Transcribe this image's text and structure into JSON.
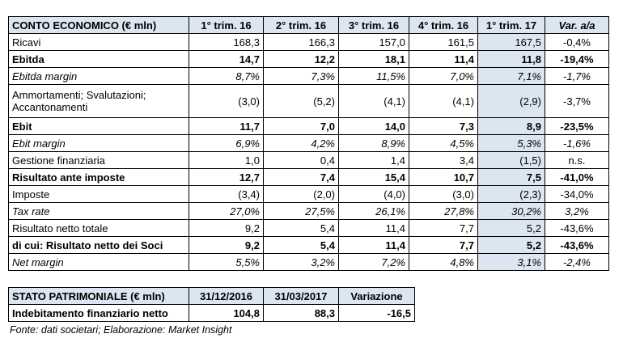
{
  "income_table": {
    "header": [
      "CONTO ECONOMICO (€ mln)",
      "1° trim. 16",
      "2° trim. 16",
      "3° trim. 16",
      "4° trim. 16",
      "1° trim. 17",
      "Var. a/a"
    ],
    "rows": [
      [
        "Ricavi",
        "168,3",
        "166,3",
        "157,0",
        "161,5",
        "167,5",
        "-0,4%"
      ],
      [
        "Ebitda",
        "14,7",
        "12,2",
        "18,1",
        "11,4",
        "11,8",
        "-19,4%"
      ],
      [
        "Ebitda margin",
        "8,7%",
        "7,3%",
        "11,5%",
        "7,0%",
        "7,1%",
        "-1,7%"
      ],
      [
        "Ammortamenti; Svalutazioni; Accantonamenti",
        "(3,0)",
        "(5,2)",
        "(4,1)",
        "(4,1)",
        "(2,9)",
        "-3,7%"
      ],
      [
        "Ebit",
        "11,7",
        "7,0",
        "14,0",
        "7,3",
        "8,9",
        "-23,5%"
      ],
      [
        "Ebit margin",
        "6,9%",
        "4,2%",
        "8,9%",
        "4,5%",
        "5,3%",
        "-1,6%"
      ],
      [
        "Gestione finanziaria",
        "1,0",
        "0,4",
        "1,4",
        "3,4",
        "(1,5)",
        "n.s."
      ],
      [
        "Risultato ante imposte",
        "12,7",
        "7,4",
        "15,4",
        "10,7",
        "7,5",
        "-41,0%"
      ],
      [
        "Imposte",
        "(3,4)",
        "(2,0)",
        "(4,0)",
        "(3,0)",
        "(2,3)",
        "-34,0%"
      ],
      [
        "Tax rate",
        "27,0%",
        "27,5%",
        "26,1%",
        "27,8%",
        "30,2%",
        "3,2%"
      ],
      [
        "Risultato netto totale",
        "9,2",
        "5,4",
        "11,4",
        "7,7",
        "5,2",
        "-43,6%"
      ],
      [
        "di cui: Risultato netto dei Soci",
        "9,2",
        "5,4",
        "11,4",
        "7,7",
        "5,2",
        "-43,6%"
      ],
      [
        "Net margin",
        "5,5%",
        "3,2%",
        "7,2%",
        "4,8%",
        "3,1%",
        "-2,4%"
      ]
    ]
  },
  "balance_table": {
    "header": [
      "STATO PATRIMONIALE (€ mln)",
      "31/12/2016",
      "31/03/2017",
      "Variazione"
    ],
    "rows": [
      [
        "Indebitamento finanziario netto",
        "104,8",
        "88,3",
        "-16,5"
      ]
    ]
  },
  "footnote": "Fonte: dati societari; Elaborazione: Market Insight"
}
